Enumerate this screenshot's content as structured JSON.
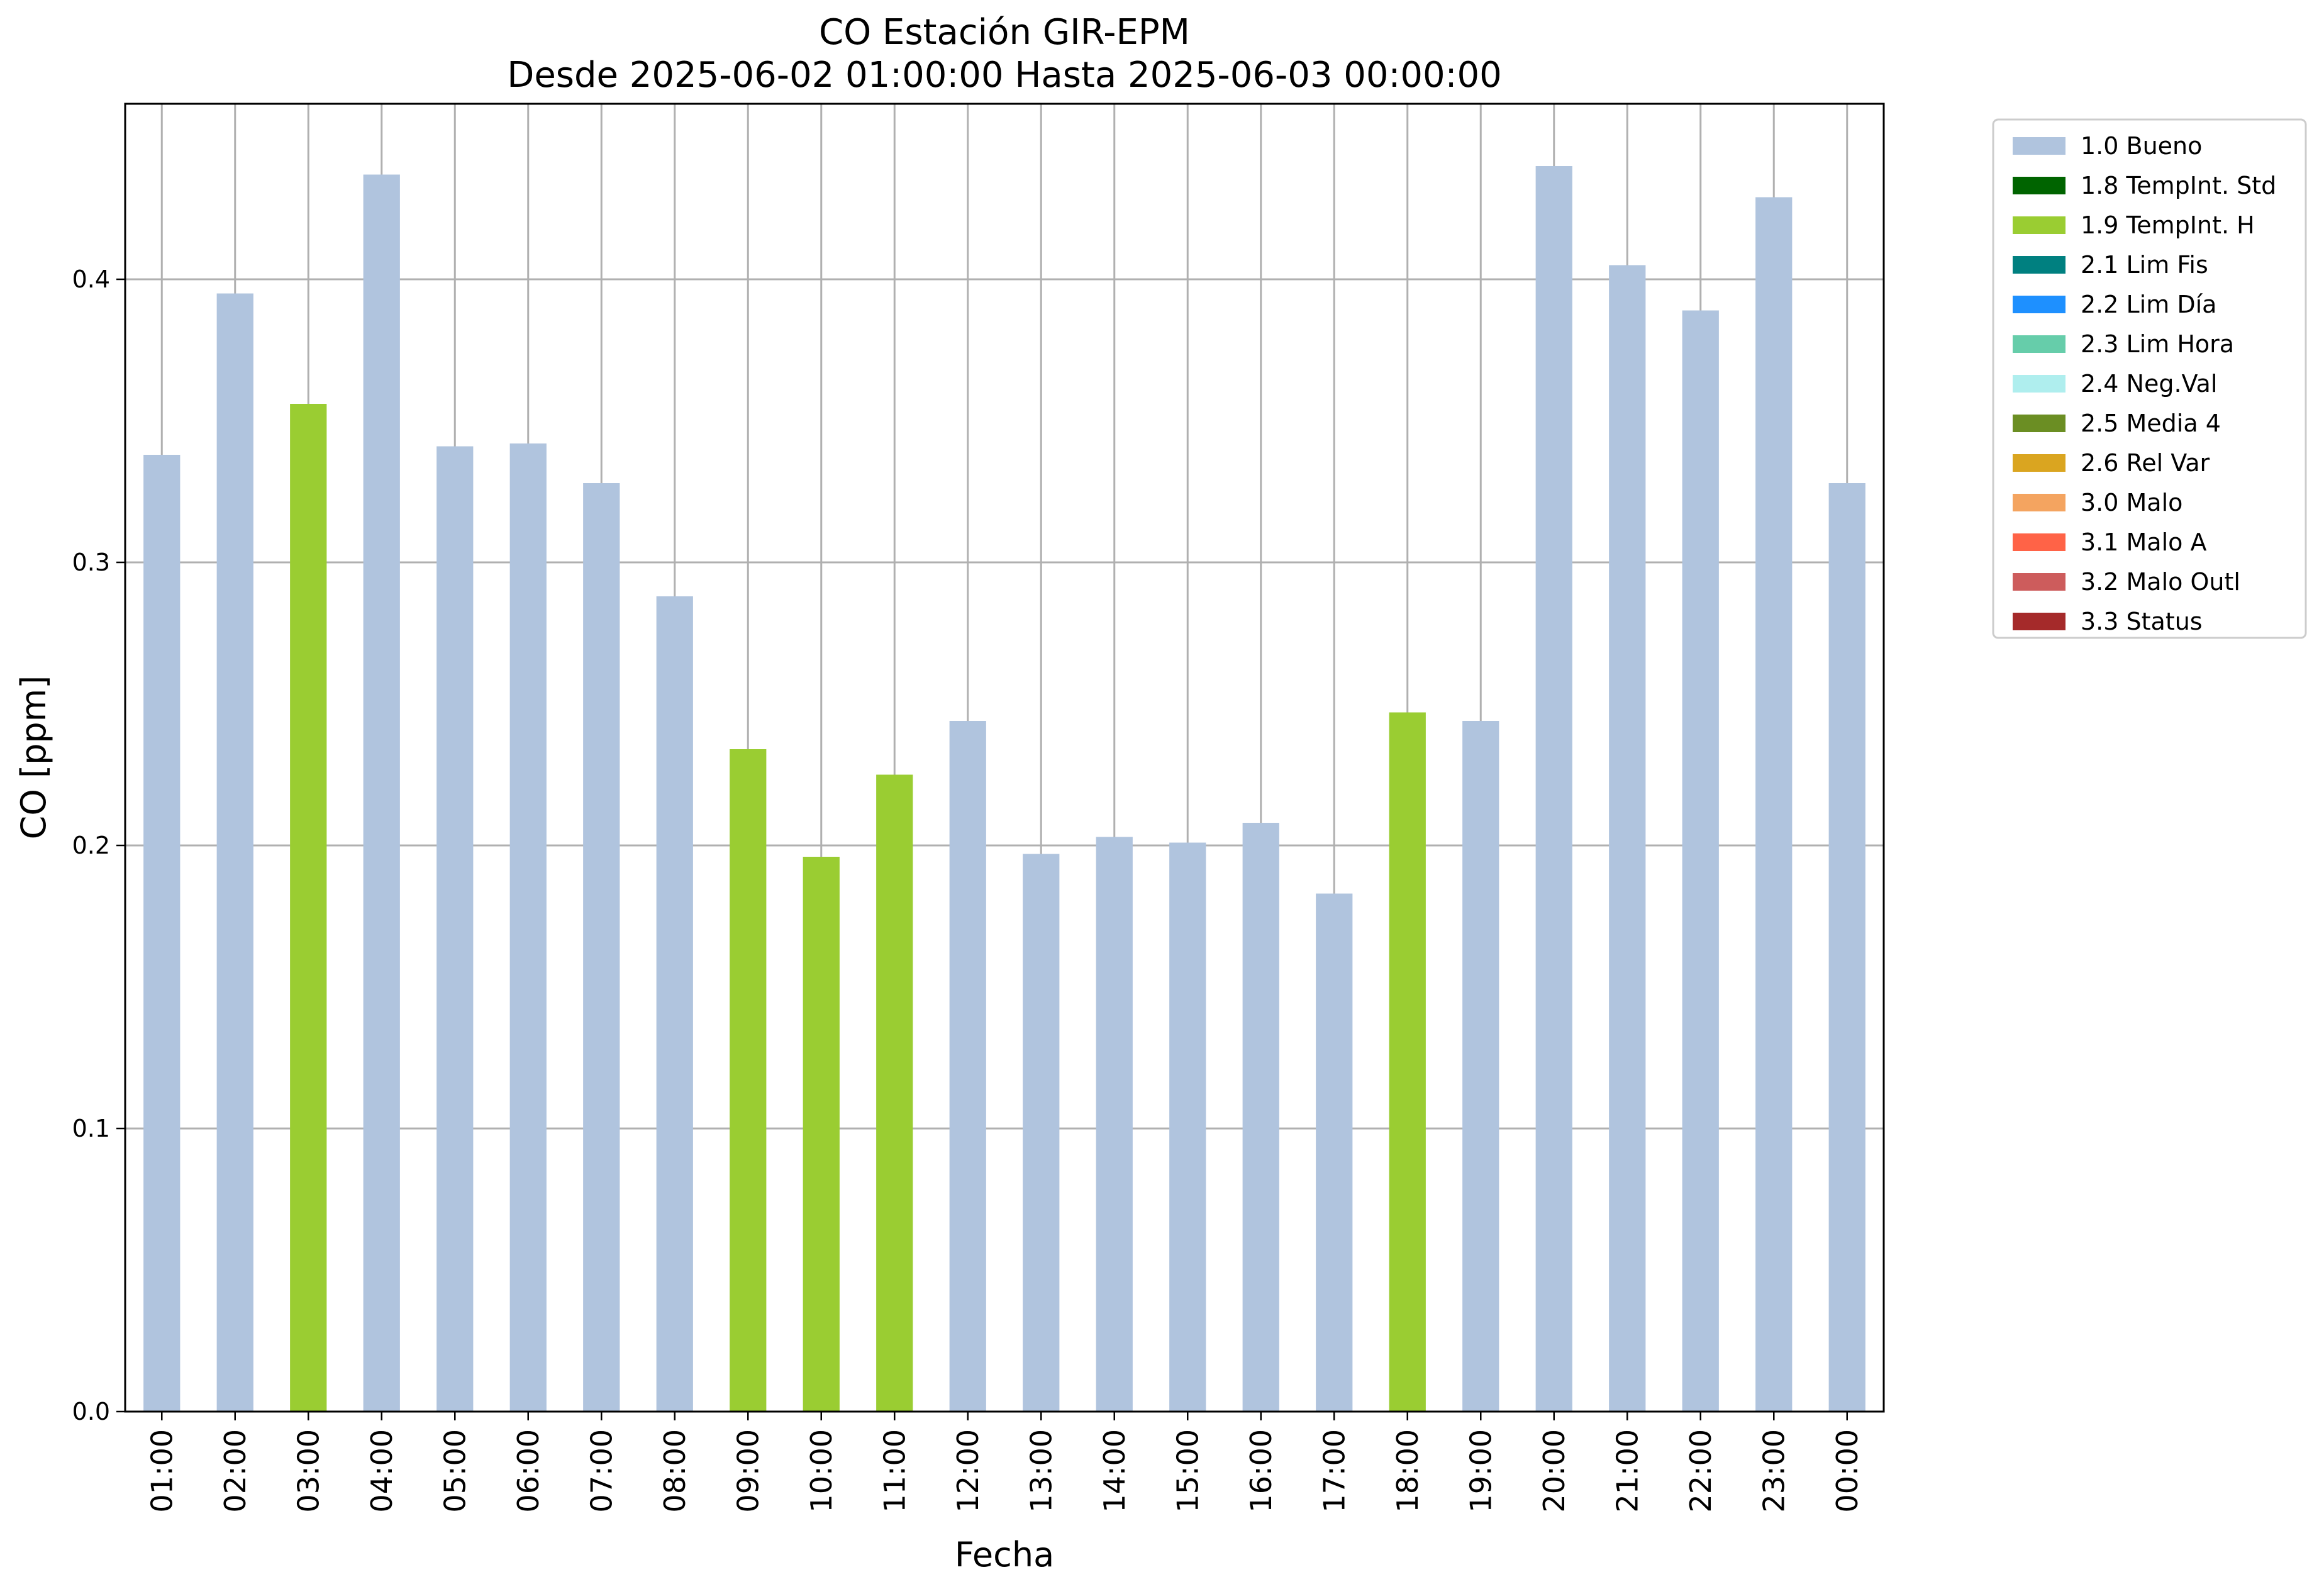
{
  "chart_data": {
    "type": "bar",
    "title": "CO Estación GIR-EPM",
    "subtitle": "Desde 2025-06-02 01:00:00 Hasta 2025-06-03 00:00:00",
    "xlabel": "Fecha",
    "ylabel": "CO [ppm]",
    "ylim": [
      0,
      0.462
    ],
    "yticks": [
      "0.0",
      "0.1",
      "0.2",
      "0.3",
      "0.4"
    ],
    "grid": true,
    "legend_position": "outside-top-right",
    "categories": [
      "01:00",
      "02:00",
      "03:00",
      "04:00",
      "05:00",
      "06:00",
      "07:00",
      "08:00",
      "09:00",
      "10:00",
      "11:00",
      "12:00",
      "13:00",
      "14:00",
      "15:00",
      "16:00",
      "17:00",
      "18:00",
      "19:00",
      "20:00",
      "21:00",
      "22:00",
      "23:00",
      "00:00"
    ],
    "values": [
      0.338,
      0.395,
      0.356,
      0.437,
      0.341,
      0.342,
      0.328,
      0.288,
      0.234,
      0.196,
      0.225,
      0.244,
      0.197,
      0.203,
      0.201,
      0.208,
      0.183,
      0.247,
      0.244,
      0.44,
      0.405,
      0.389,
      0.429,
      0.328
    ],
    "flags": [
      "1.0 Bueno",
      "1.0 Bueno",
      "1.9 TempInt. H",
      "1.0 Bueno",
      "1.0 Bueno",
      "1.0 Bueno",
      "1.0 Bueno",
      "1.0 Bueno",
      "1.9 TempInt. H",
      "1.9 TempInt. H",
      "1.9 TempInt. H",
      "1.0 Bueno",
      "1.0 Bueno",
      "1.0 Bueno",
      "1.0 Bueno",
      "1.0 Bueno",
      "1.0 Bueno",
      "1.9 TempInt. H",
      "1.0 Bueno",
      "1.0 Bueno",
      "1.0 Bueno",
      "1.0 Bueno",
      "1.0 Bueno",
      "1.0 Bueno"
    ],
    "legend": [
      {
        "label": "1.0 Bueno",
        "color": "#b0c4de"
      },
      {
        "label": "1.8 TempInt. Std",
        "color": "#006400"
      },
      {
        "label": "1.9 TempInt. H",
        "color": "#9acd32"
      },
      {
        "label": "2.1 Lim Fis",
        "color": "#008080"
      },
      {
        "label": "2.2 Lim Día",
        "color": "#1e90ff"
      },
      {
        "label": "2.3 Lim Hora",
        "color": "#66cdaa"
      },
      {
        "label": "2.4 Neg.Val",
        "color": "#afeeee"
      },
      {
        "label": "2.5 Media 4",
        "color": "#6b8e23"
      },
      {
        "label": "2.6 Rel Var",
        "color": "#daa520"
      },
      {
        "label": "3.0 Malo",
        "color": "#f4a460"
      },
      {
        "label": "3.1 Malo A",
        "color": "#ff6347"
      },
      {
        "label": "3.2 Malo Outl",
        "color": "#cd5c5c"
      },
      {
        "label": "3.3 Status",
        "color": "#a52a2a"
      }
    ]
  }
}
